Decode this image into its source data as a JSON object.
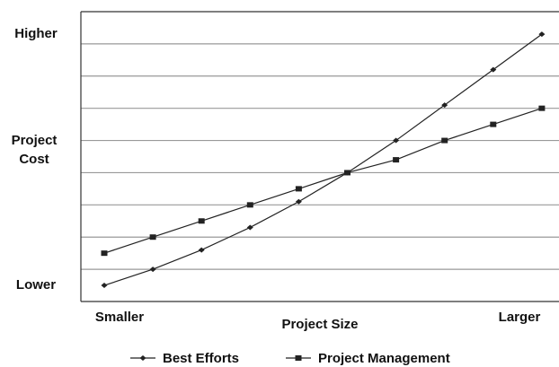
{
  "chart_data": {
    "type": "line",
    "xlabel": "Project Size",
    "ylabel": "Project Cost",
    "x_end_labels": [
      "Smaller",
      "Larger"
    ],
    "categories": [
      null,
      null,
      null,
      null,
      null,
      null,
      null,
      null,
      null,
      null
    ],
    "series": [
      {
        "name": "Best Efforts",
        "color": "#222222",
        "marker": "diamond",
        "values": [
          0.5,
          1.0,
          1.6,
          2.3,
          3.1,
          4.0,
          5.0,
          6.1,
          7.2,
          8.3
        ]
      },
      {
        "name": "Project Management",
        "color": "#222222",
        "marker": "square",
        "values": [
          1.5,
          2.0,
          2.5,
          3.0,
          3.5,
          4.0,
          4.4,
          5.0,
          5.5,
          6.0
        ]
      }
    ],
    "ylim": [
      0,
      9
    ],
    "yticks": [
      {
        "value": 0.5,
        "label": "Lower"
      },
      {
        "value": 8.3,
        "label": "Higher"
      }
    ],
    "grid_lines": [
      1,
      2,
      3,
      4,
      5,
      6,
      7,
      8
    ],
    "grid": true,
    "legend": "bottom"
  }
}
